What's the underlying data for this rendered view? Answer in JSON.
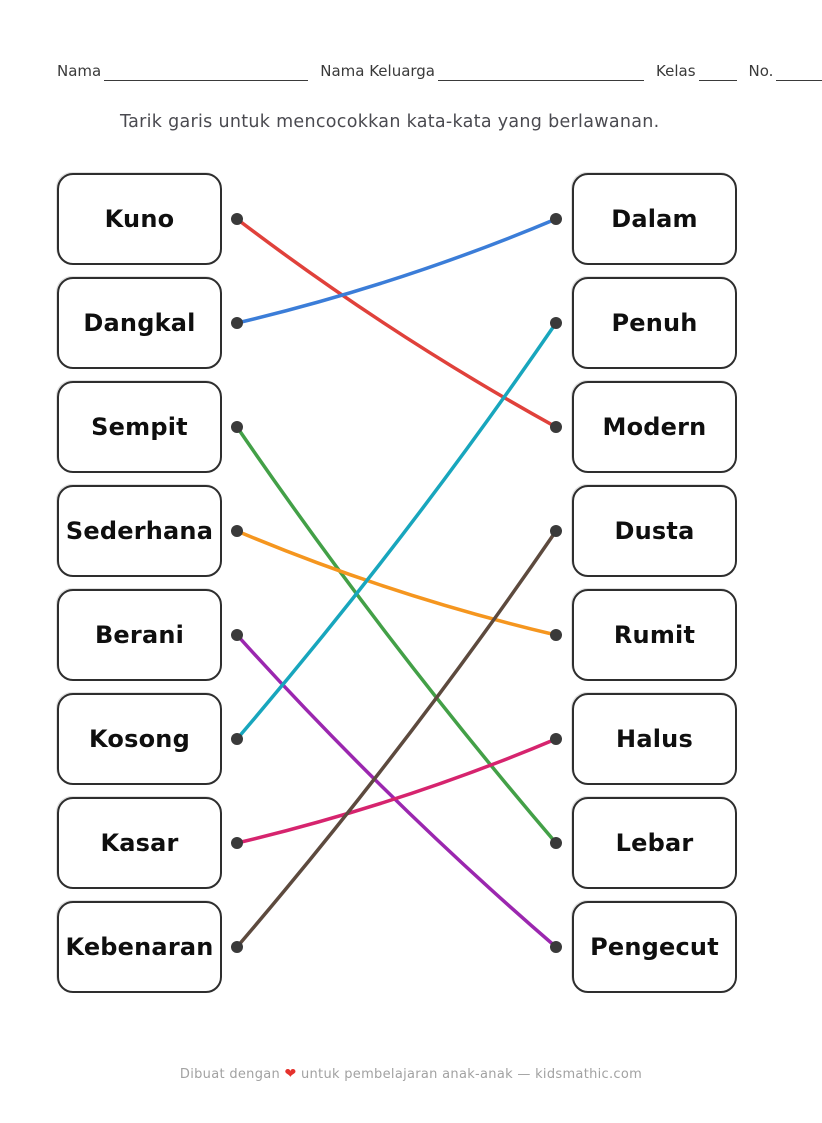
{
  "header": {
    "fields": [
      {
        "label": "Nama"
      },
      {
        "label": "Nama Keluarga"
      },
      {
        "label": "Kelas"
      },
      {
        "label": "No."
      }
    ]
  },
  "instruction": "Tarik garis untuk mencocokkan kata-kata yang berlawanan.",
  "matching": {
    "left_words": [
      "Kuno",
      "Dangkal",
      "Sempit",
      "Sederhana",
      "Berani",
      "Kosong",
      "Kasar",
      "Kebenaran"
    ],
    "right_words": [
      "Dalam",
      "Penuh",
      "Modern",
      "Dusta",
      "Rumit",
      "Halus",
      "Lebar",
      "Pengecut"
    ],
    "connections": [
      {
        "from": "Kuno",
        "to": "Modern",
        "from_index": 0,
        "to_index": 2,
        "color": "#e0413b"
      },
      {
        "from": "Dangkal",
        "to": "Dalam",
        "from_index": 1,
        "to_index": 0,
        "color": "#3b7dd8"
      },
      {
        "from": "Sempit",
        "to": "Lebar",
        "from_index": 2,
        "to_index": 6,
        "color": "#43a047"
      },
      {
        "from": "Sederhana",
        "to": "Rumit",
        "from_index": 3,
        "to_index": 4,
        "color": "#f5961f"
      },
      {
        "from": "Berani",
        "to": "Pengecut",
        "from_index": 4,
        "to_index": 7,
        "color": "#9b27af"
      },
      {
        "from": "Kosong",
        "to": "Penuh",
        "from_index": 5,
        "to_index": 1,
        "color": "#18a6bd"
      },
      {
        "from": "Kasar",
        "to": "Halus",
        "from_index": 6,
        "to_index": 5,
        "color": "#d6246e"
      },
      {
        "from": "Kebenaran",
        "to": "Dusta",
        "from_index": 7,
        "to_index": 3,
        "color": "#5d4a3e"
      }
    ],
    "dot_color": "#3a3a3a",
    "line_width": 3.5
  },
  "footer": {
    "prefix": "Dibuat dengan",
    "heart": "❤",
    "suffix": "untuk pembelajaran anak-anak — kidsmathic.com",
    "heart_color": "#e5322d"
  }
}
